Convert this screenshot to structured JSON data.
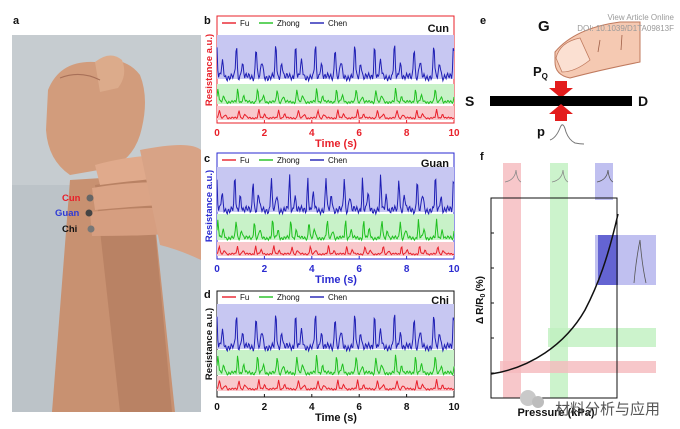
{
  "watermark": {
    "line1": "View Article Online",
    "line2": "DOI: 10.1039/D1TA09813F",
    "brand": "材料分析与应用"
  },
  "panel_a": {
    "label": "a",
    "points": [
      {
        "name": "Cun",
        "color": "#e8202a"
      },
      {
        "name": "Guan",
        "color": "#2f3bd6"
      },
      {
        "name": "Chi",
        "color": "#111111"
      }
    ]
  },
  "panel_e": {
    "label": "e",
    "G": "G",
    "P": "P",
    "Q": "Q",
    "S": "S",
    "D": "D",
    "p": "p"
  },
  "panel_f": {
    "label": "f",
    "xlabel": "Pressure (kPa)",
    "ylabel_delta": "Δ",
    "ylabel_main": "R/R",
    "ylabel_sub": "0",
    "ylabel_unit": "(%)"
  },
  "colors": {
    "fu": "#e8202a",
    "zhong": "#1fc01f",
    "chen": "#1f1fb4",
    "fu_band": "#f5b9bd",
    "zhong_band": "#bff0bf",
    "chen_band": "#b9b9ee",
    "axis_red": "#e8202a",
    "axis_blue": "#2a2ad0",
    "axis_black": "#111111"
  },
  "chart_data": [
    {
      "type": "line",
      "panel": "b",
      "position_name": "Cun",
      "legend": [
        "Fu",
        "Zhong",
        "Chen"
      ],
      "xlabel": "Time (s)",
      "ylabel": "Resistance a.u.)",
      "xlim": [
        0,
        10
      ],
      "xticks": [
        "0",
        "2",
        "4",
        "6",
        "8",
        "10"
      ],
      "pulse_rate_hz": 1.2,
      "series": [
        {
          "name": "Fu",
          "baseline": 0.08,
          "amplitude": 0.04
        },
        {
          "name": "Zhong",
          "baseline": 0.28,
          "amplitude": 0.1
        },
        {
          "name": "Chen",
          "baseline": 0.68,
          "amplitude": 0.24
        }
      ]
    },
    {
      "type": "line",
      "panel": "c",
      "position_name": "Guan",
      "legend": [
        "Fu",
        "Zhong",
        "Chen"
      ],
      "xlabel": "Time (s)",
      "ylabel": "Resistance a.u.)",
      "xlim": [
        0,
        10
      ],
      "xticks": [
        "0",
        "2",
        "4",
        "6",
        "8",
        "10"
      ],
      "pulse_rate_hz": 1.3,
      "series": [
        {
          "name": "Fu",
          "baseline": 0.08,
          "amplitude": 0.04
        },
        {
          "name": "Zhong",
          "baseline": 0.3,
          "amplitude": 0.12
        },
        {
          "name": "Chen",
          "baseline": 0.66,
          "amplitude": 0.26
        }
      ]
    },
    {
      "type": "line",
      "panel": "d",
      "position_name": "Chi",
      "legend": [
        "Fu",
        "Zhong",
        "Chen"
      ],
      "xlabel": "Time (s)",
      "ylabel": "Resistance a.u.)",
      "xlim": [
        0,
        10
      ],
      "xticks": [
        "0",
        "2",
        "4",
        "6",
        "8",
        "10"
      ],
      "pulse_rate_hz": 1.2,
      "series": [
        {
          "name": "Fu",
          "baseline": 0.1,
          "amplitude": 0.05
        },
        {
          "name": "Zhong",
          "baseline": 0.34,
          "amplitude": 0.12
        },
        {
          "name": "Chen",
          "baseline": 0.7,
          "amplitude": 0.26
        }
      ]
    }
  ]
}
